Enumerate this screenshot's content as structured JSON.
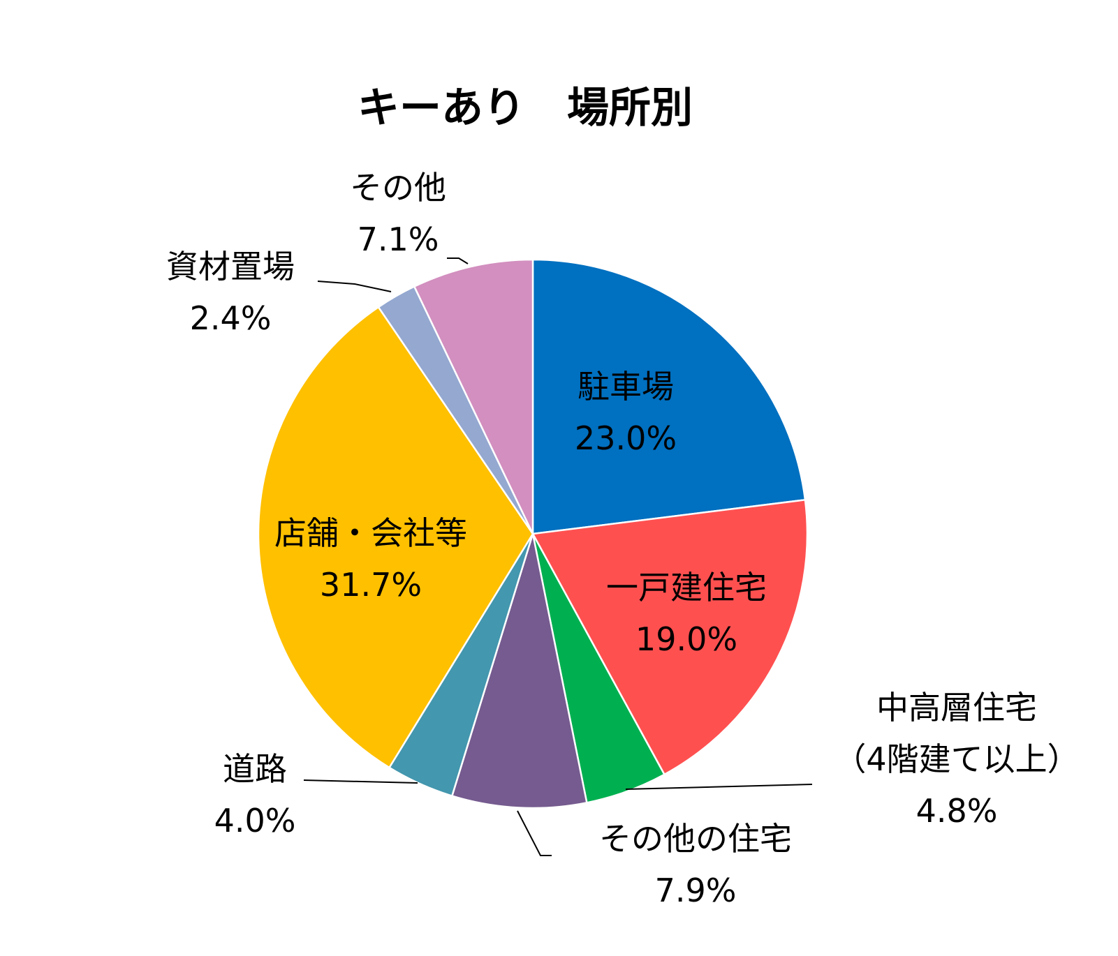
{
  "chart_data": {
    "type": "pie",
    "title": "キーあり　場所別",
    "start_angle_deg": 0,
    "direction": "clockwise",
    "slices": [
      {
        "label": "駐車場",
        "value": 23.0,
        "value_label": "23.0%",
        "color": "#0070C0"
      },
      {
        "label": "一戸建住宅",
        "value": 19.0,
        "value_label": "19.0%",
        "color": "#FF5050"
      },
      {
        "label": "中高層住宅",
        "sublabel": "（4階建て以上）",
        "value": 4.8,
        "value_label": "4.8%",
        "color": "#00B050"
      },
      {
        "label": "その他の住宅",
        "value": 7.9,
        "value_label": "7.9%",
        "color": "#755B8F"
      },
      {
        "label": "道路",
        "value": 4.0,
        "value_label": "4.0%",
        "color": "#4397AE"
      },
      {
        "label": "店舗・会社等",
        "value": 31.7,
        "value_label": "31.7%",
        "color": "#FFC000"
      },
      {
        "label": "資材置場",
        "value": 2.4,
        "value_label": "2.4%",
        "color": "#94A8D0"
      },
      {
        "label": "その他",
        "value": 7.1,
        "value_label": "7.1%",
        "color": "#D28FBF"
      }
    ]
  }
}
